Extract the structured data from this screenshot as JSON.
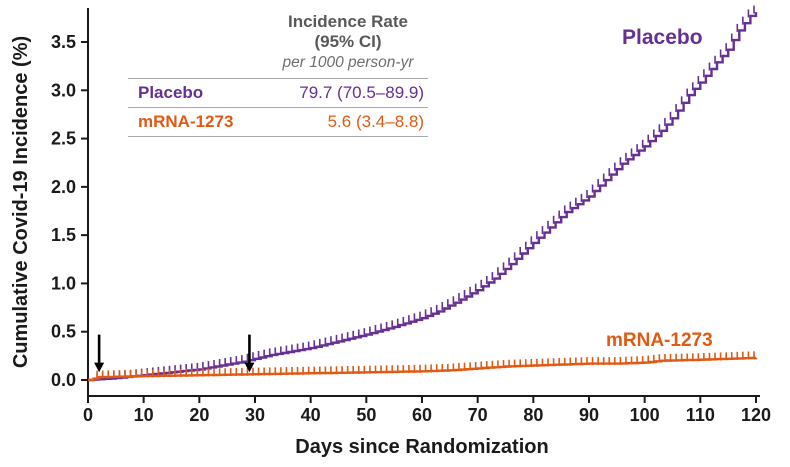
{
  "figure": {
    "y_axis_title": "Cumulative Covid-19 Incidence (%)",
    "x_axis_title": "Days since Randomization",
    "placebo_curve_label": "Placebo",
    "mrna_curve_label": "mRNA-1273"
  },
  "inset": {
    "title_line1": "Incidence Rate",
    "title_line2": "(95% CI)",
    "subtitle": "per 1000 person-yr",
    "rows": [
      {
        "label": "Placebo",
        "value": "79.7 (70.5–89.9)"
      },
      {
        "label": "mRNA-1273",
        "value": "5.6 (3.4–8.8)"
      }
    ]
  },
  "colors": {
    "placebo": "#662f91",
    "mrna": "#e05a14",
    "axis": "#1a1a1a",
    "inset_header": "#58595b",
    "arrow": "#000000"
  },
  "chart_data": {
    "type": "line",
    "subtype": "cumulative-incidence-step-curve",
    "title": "",
    "xlabel": "Days since Randomization",
    "ylabel": "Cumulative Covid-19 Incidence (%)",
    "xlim": [
      0,
      120
    ],
    "ylim": [
      0,
      3.85
    ],
    "x_ticks": [
      0,
      10,
      20,
      30,
      40,
      50,
      60,
      70,
      80,
      90,
      100,
      110,
      120
    ],
    "y_ticks": [
      0.0,
      0.5,
      1.0,
      1.5,
      2.0,
      2.5,
      3.0,
      3.5
    ],
    "grid": false,
    "legend_position": "curve-end-labels",
    "annotations": {
      "dose_arrow_days": [
        2,
        29
      ],
      "incidence_rate_table": {
        "header": "Incidence Rate (95% CI) per 1000 person-yr",
        "Placebo": "79.7 (70.5–89.9)",
        "mRNA-1273": "5.6 (3.4–8.8)"
      }
    },
    "series": [
      {
        "name": "Placebo",
        "color": "#662f91",
        "points": [
          [
            0,
            0
          ],
          [
            5,
            0.02
          ],
          [
            10,
            0.05
          ],
          [
            15,
            0.08
          ],
          [
            20,
            0.11
          ],
          [
            25,
            0.16
          ],
          [
            28,
            0.19
          ],
          [
            30,
            0.22
          ],
          [
            33,
            0.26
          ],
          [
            36,
            0.29
          ],
          [
            40,
            0.33
          ],
          [
            45,
            0.4
          ],
          [
            50,
            0.47
          ],
          [
            55,
            0.55
          ],
          [
            60,
            0.64
          ],
          [
            63,
            0.71
          ],
          [
            66,
            0.8
          ],
          [
            70,
            0.93
          ],
          [
            73,
            1.05
          ],
          [
            76,
            1.2
          ],
          [
            80,
            1.42
          ],
          [
            83,
            1.58
          ],
          [
            86,
            1.74
          ],
          [
            90,
            1.9
          ],
          [
            93,
            2.07
          ],
          [
            96,
            2.24
          ],
          [
            100,
            2.42
          ],
          [
            103,
            2.58
          ],
          [
            105,
            2.71
          ],
          [
            108,
            2.95
          ],
          [
            110,
            3.08
          ],
          [
            113,
            3.29
          ],
          [
            115,
            3.42
          ],
          [
            117,
            3.62
          ],
          [
            119,
            3.77
          ],
          [
            120,
            3.81
          ]
        ]
      },
      {
        "name": "mRNA-1273",
        "color": "#e05a14",
        "points": [
          [
            0,
            0
          ],
          [
            2,
            0.03
          ],
          [
            10,
            0.04
          ],
          [
            20,
            0.05
          ],
          [
            30,
            0.06
          ],
          [
            40,
            0.07
          ],
          [
            50,
            0.08
          ],
          [
            60,
            0.09
          ],
          [
            65,
            0.1
          ],
          [
            70,
            0.12
          ],
          [
            75,
            0.14
          ],
          [
            80,
            0.15
          ],
          [
            85,
            0.16
          ],
          [
            90,
            0.17
          ],
          [
            95,
            0.17
          ],
          [
            100,
            0.18
          ],
          [
            103,
            0.2
          ],
          [
            110,
            0.21
          ],
          [
            115,
            0.22
          ],
          [
            120,
            0.23
          ]
        ]
      }
    ]
  }
}
